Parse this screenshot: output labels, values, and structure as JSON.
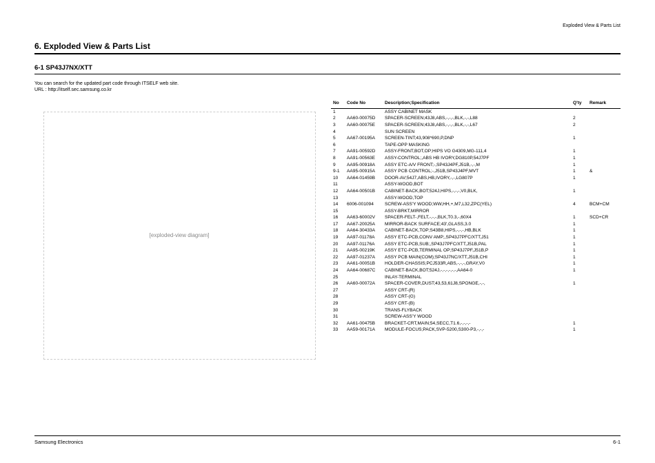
{
  "header_right": "Exploded View & Parts List",
  "section_title": "6. Exploded View & Parts List",
  "subsection_title": "6-1 SP43J7NX/XTT",
  "intro_line1": "You can search for the updated part code through ITSELF web site.",
  "intro_line2": "URL : http://itself.sec.samsung.co.kr",
  "diagram_placeholder": "[exploded-view diagram]",
  "table": {
    "columns": {
      "no": "No",
      "code": "Code No",
      "desc": "Description;Specification",
      "qty": "Q'ty",
      "remark": "Remark"
    },
    "rows": [
      {
        "no": "1",
        "code": "",
        "desc": "ASSY CABINET MASK",
        "qty": "",
        "remark": ""
      },
      {
        "no": "2",
        "code": "AA60-00075D",
        "desc": "SPACER-SCREEN;43J8,ABS,-,-,-,BLK,-,-,L88",
        "qty": "2",
        "remark": ""
      },
      {
        "no": "3",
        "code": "AA60-00075E",
        "desc": "SPACER-SCREEN;43J8,ABS,-,-,-,BLK,-,-,L67",
        "qty": "2",
        "remark": ""
      },
      {
        "no": "4",
        "code": "",
        "desc": "SUN SCREEN",
        "qty": "",
        "remark": ""
      },
      {
        "no": "5",
        "code": "AA67-00195A",
        "desc": "SCREEN-TINT;43,908*690,P,DNP",
        "qty": "1",
        "remark": ""
      },
      {
        "no": "6",
        "code": "",
        "desc": "TAPE-OPP MASKING",
        "qty": "",
        "remark": ""
      },
      {
        "no": "7",
        "code": "AA91-00592D",
        "desc": "ASSY-FRONT,BOT,OP;HIPS VO G4309,MG-111,4",
        "qty": "1",
        "remark": ""
      },
      {
        "no": "8",
        "code": "AA91-00563E",
        "desc": "ASSY-CONTROL;,ABS HB IVORY,DG810P,54J7PF",
        "qty": "1",
        "remark": ""
      },
      {
        "no": "9",
        "code": "AA95-00918A",
        "desc": "ASSY ETC-A/V FRONT;-,SP43J4PF,J51B,-,-,M",
        "qty": "1",
        "remark": ""
      },
      {
        "no": "9-1",
        "code": "AA95-00915A",
        "desc": "ASSY PCB CONTROL;-,J51B,SP43J4PF,MVT",
        "qty": "1",
        "remark": "&"
      },
      {
        "no": "10",
        "code": "AA64-01459B",
        "desc": "DOOR-AV;54J7,ABS,HB,IVORY,-,-,LG807P",
        "qty": "1",
        "remark": ""
      },
      {
        "no": "11",
        "code": "",
        "desc": "ASSY-WOOD,BOT",
        "qty": "",
        "remark": ""
      },
      {
        "no": "12",
        "code": "AA64-00501B",
        "desc": "CABINET-BACK,BOT;524J,HIPS,-,-,-,V0,BLK,",
        "qty": "1",
        "remark": ""
      },
      {
        "no": "13",
        "code": "",
        "desc": "ASSY-WOOD,TOP",
        "qty": "",
        "remark": ""
      },
      {
        "no": "14",
        "code": "6006-001094",
        "desc": "SCREW-ASS'Y WOOD;WW,HH,+,M7,L32,ZPC(YEL)",
        "qty": "4",
        "remark": "BCM+CM"
      },
      {
        "no": "15",
        "code": "",
        "desc": "ASSY-BRKT,MIRROR",
        "qty": "",
        "remark": ""
      },
      {
        "no": "16",
        "code": "AA63-60002V",
        "desc": "SPACER-FELT-,FELT,-,-,-,BLK,T0.3,-,60X4",
        "qty": "1",
        "remark": "SCD+CR"
      },
      {
        "no": "17",
        "code": "AA67-20025A",
        "desc": "MIRROR-BACK SURFACE;43',GLASS,3.0",
        "qty": "1",
        "remark": ""
      },
      {
        "no": "18",
        "code": "AA64-30433A",
        "desc": "CABINET-BACK,TOP;S43B8,HIPS,-,-,-,HB,BLK",
        "qty": "1",
        "remark": ""
      },
      {
        "no": "19",
        "code": "AA97-01178A",
        "desc": "ASSY ETC-PCB,CONV AMP;,SP43J7PFC/XTT,J51",
        "qty": "1",
        "remark": ""
      },
      {
        "no": "20",
        "code": "AA97-01176A",
        "desc": "ASSY ETC-PCB,SUB;,SP43J7PFC/XTT,J51B,PAL",
        "qty": "1",
        "remark": ""
      },
      {
        "no": "21",
        "code": "AA95-00219K",
        "desc": "ASSY ETC-PCB,TERMINAL OP;SP43J7PF,J51B,P",
        "qty": "1",
        "remark": ""
      },
      {
        "no": "22",
        "code": "AA97-01237A",
        "desc": "ASSY PCB MAIN(COM);SP43J7NC/XTT,J51B,CHI",
        "qty": "1",
        "remark": ""
      },
      {
        "no": "23",
        "code": "AA61-00051B",
        "desc": "HOLDER-CHASSIS;PCJ533R,ABS,-,-,-,GRAY,V0",
        "qty": "1",
        "remark": ""
      },
      {
        "no": "24",
        "code": "AA64-00687C",
        "desc": "CABINET-BACK,BOT;524J,-,-,-,-,-,-,AA64-0",
        "qty": "1",
        "remark": ""
      },
      {
        "no": "25",
        "code": "",
        "desc": "INLAY-TERMINAL",
        "qty": "",
        "remark": ""
      },
      {
        "no": "26",
        "code": "AA60-00072A",
        "desc": "SPACER-COVER,DUST;43,53,61J8,SPONGE,-,-,",
        "qty": "1",
        "remark": ""
      },
      {
        "no": "27",
        "code": "",
        "desc": "ASSY CRT-(R)",
        "qty": "",
        "remark": ""
      },
      {
        "no": "28",
        "code": "",
        "desc": "ASSY CRT-(G)",
        "qty": "",
        "remark": ""
      },
      {
        "no": "29",
        "code": "",
        "desc": "ASSY CRT-(B)",
        "qty": "",
        "remark": ""
      },
      {
        "no": "30",
        "code": "",
        "desc": "TRANS-FLYBACK",
        "qty": "",
        "remark": ""
      },
      {
        "no": "31",
        "code": "",
        "desc": "SCREW-ASS'Y WOOD",
        "qty": "",
        "remark": ""
      },
      {
        "no": "32",
        "code": "AA61-00475B",
        "desc": "BRACKET-CRT,MAIN;54,SECC,T1.6,-,-,-,-",
        "qty": "1",
        "remark": ""
      },
      {
        "no": "33",
        "code": "AA59-00171A",
        "desc": "MODULE-FOCUS;PACK,SVP-5200,S300-P3,-,-,-",
        "qty": "1",
        "remark": ""
      }
    ]
  },
  "footer_left": "Samsung Electronics",
  "footer_right": "6-1"
}
